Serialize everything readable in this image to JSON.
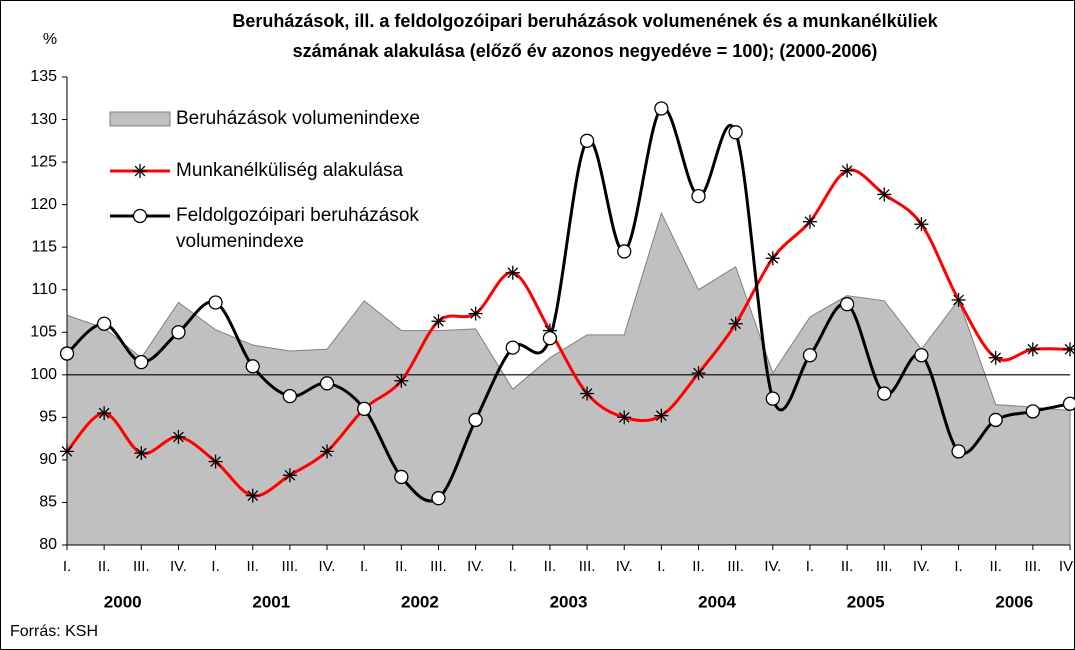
{
  "chart_data": {
    "type": "line",
    "title": [
      "Beruházások, ill. a feldolgozóipari beruházások volumenének és a munkanélküliek",
      "számának alakulása (előző év azonos negyedéve = 100); (2000-2006)"
    ],
    "y_label": "%",
    "source": "Forrás: KSH",
    "categories": [
      "I.",
      "II.",
      "III.",
      "IV.",
      "I.",
      "II.",
      "III.",
      "IV.",
      "I.",
      "II.",
      "III.",
      "IV.",
      "I.",
      "II.",
      "III.",
      "IV.",
      "I.",
      "II.",
      "III.",
      "IV.",
      "I.",
      "II.",
      "III.",
      "IV.",
      "I.",
      "II.",
      "III.",
      "IV"
    ],
    "years": [
      "2000",
      "2001",
      "2002",
      "2003",
      "2004",
      "2005",
      "2006"
    ],
    "ylim": [
      80,
      135
    ],
    "yticks": [
      80,
      85,
      90,
      95,
      100,
      105,
      110,
      115,
      120,
      125,
      130,
      135
    ],
    "reference_line": 100,
    "series": [
      {
        "name": "Beruházások volumenindexe",
        "kind": "area",
        "color": "#c0c0c0",
        "values": [
          107,
          105.5,
          102,
          108.5,
          105.3,
          103.5,
          102.8,
          103,
          108.7,
          105.2,
          105.2,
          105.4,
          98.3,
          102,
          104.7,
          104.7,
          119,
          110,
          112.7,
          100.2,
          106.8,
          109.3,
          108.7,
          103,
          108.8,
          96.5,
          96.2,
          95.8
        ]
      },
      {
        "name": "Munkanélküliség alakulása",
        "kind": "star",
        "color": "#ff0000",
        "values": [
          91,
          95.5,
          90.8,
          92.7,
          89.8,
          85.8,
          88.2,
          91,
          96,
          99.3,
          106.3,
          107.2,
          112,
          105.2,
          97.8,
          95,
          95.2,
          100.2,
          106,
          113.7,
          118,
          124,
          121.2,
          117.7,
          108.8,
          102,
          103,
          103
        ]
      },
      {
        "name": "Feldolgozóipari beruházások volumenindexe",
        "kind": "circle",
        "color": "#000000",
        "values": [
          102.5,
          106,
          101.5,
          105,
          108.5,
          101,
          97.5,
          99,
          96,
          88,
          85.5,
          94.7,
          103.2,
          104.3,
          127.5,
          114.5,
          131.3,
          121,
          128.5,
          97.2,
          102.3,
          108.3,
          97.8,
          102.3,
          91,
          94.7,
          95.7,
          96.6
        ]
      }
    ]
  }
}
